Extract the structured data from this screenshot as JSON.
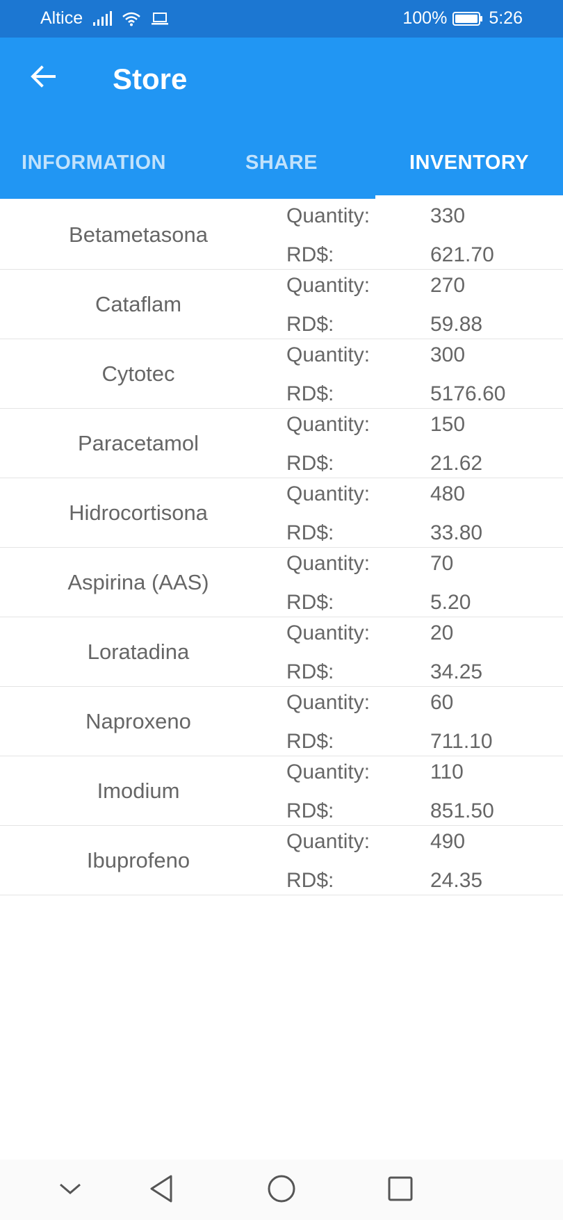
{
  "status_bar": {
    "carrier": "Altice",
    "battery": "100%",
    "time": "5:26"
  },
  "app_bar": {
    "title": "Store"
  },
  "tabs": [
    {
      "label": "INFORMATION",
      "active": false
    },
    {
      "label": "SHARE",
      "active": false
    },
    {
      "label": "INVENTORY",
      "active": true
    }
  ],
  "inventory": {
    "quantity_label": "Quantity:",
    "price_label": "RD$:",
    "items": [
      {
        "name": "Betametasona",
        "quantity": "330",
        "price": "621.70"
      },
      {
        "name": "Cataflam",
        "quantity": "270",
        "price": "59.88"
      },
      {
        "name": "Cytotec",
        "quantity": "300",
        "price": "5176.60"
      },
      {
        "name": "Paracetamol",
        "quantity": "150",
        "price": "21.62"
      },
      {
        "name": "Hidrocortisona",
        "quantity": "480",
        "price": "33.80"
      },
      {
        "name": "Aspirina (AAS)",
        "quantity": "70",
        "price": "5.20"
      },
      {
        "name": "Loratadina",
        "quantity": "20",
        "price": "34.25"
      },
      {
        "name": "Naproxeno",
        "quantity": "60",
        "price": "711.10"
      },
      {
        "name": "Imodium",
        "quantity": "110",
        "price": "851.50"
      },
      {
        "name": "Ibuprofeno",
        "quantity": "490",
        "price": "24.35"
      }
    ]
  },
  "icons": {
    "back": "arrow-left-icon",
    "signal": "signal-icon",
    "wifi": "wifi-icon",
    "laptop": "laptop-icon",
    "battery": "battery-icon",
    "nav_down": "chevron-down-icon",
    "nav_back": "triangle-back-icon",
    "nav_home": "circle-home-icon",
    "nav_recents": "square-recents-icon"
  },
  "colors": {
    "status_bar": "#1c77d2",
    "app_bar": "#2196f3",
    "text": "#666666",
    "divider": "#e4e4e4"
  }
}
